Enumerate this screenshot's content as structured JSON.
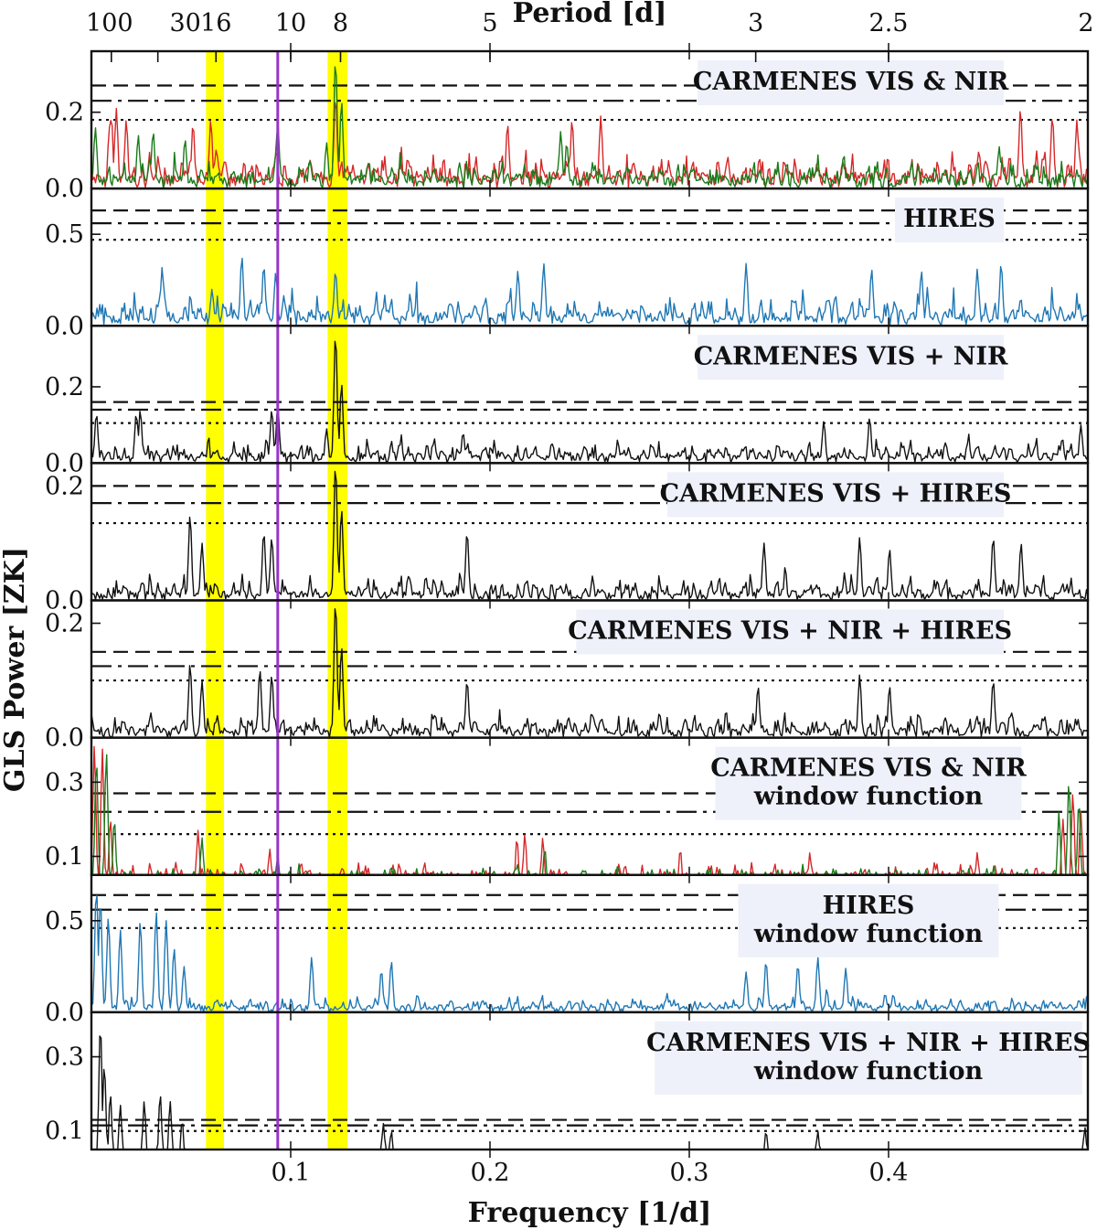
{
  "chart_data": {
    "type": "line",
    "figure_kind": "stacked generalized Lomb-Scargle periodograms",
    "xlabel": "Frequency [1/d]",
    "ylabel": "GLS Power [ZK]",
    "top_axis_label": "Period [d]",
    "xlim": [
      0.0,
      0.5
    ],
    "x_ticks": [
      0.1,
      0.2,
      0.3,
      0.4
    ],
    "x_tick_labels": [
      "0.1",
      "0.2",
      "0.3",
      "0.4"
    ],
    "period_ticks": [
      100,
      30,
      16,
      10,
      8,
      5,
      3,
      2.5,
      2
    ],
    "period_tick_labels": [
      "100",
      "30",
      "16",
      "10",
      "8",
      "5",
      "3",
      "2.5",
      "2"
    ],
    "highlight_bands": [
      {
        "period": 16,
        "frequency_range": [
          0.0575,
          0.0665
        ],
        "color": "#ffff00"
      },
      {
        "period": 8,
        "frequency_range": [
          0.1185,
          0.1285
        ],
        "color": "#ffff00"
      }
    ],
    "marker_line": {
      "frequency": 0.0935,
      "color": "#9933cc"
    },
    "colors": {
      "vis": "#d62728",
      "nir": "#1a7a1a",
      "hires": "#1f77b4",
      "combined": "#111111",
      "label_bg": "#eef0fa"
    },
    "panels": [
      {
        "label_lines": [
          "CARMENES VIS & NIR"
        ],
        "ylim": [
          0.0,
          0.36
        ],
        "y_ticks": [
          0.0,
          0.2
        ],
        "y_tick_labels": [
          "0.0",
          "0.2"
        ],
        "fap_levels": [
          0.27,
          0.23,
          0.18
        ],
        "series": [
          {
            "name": "VIS",
            "color": "#d62728",
            "background": 0.035,
            "noise": 0.11,
            "seed": 11,
            "peaks": [
              [
                0.009,
                0.16
              ],
              [
                0.01,
                0.19
              ],
              [
                0.0125,
                0.21
              ],
              [
                0.0175,
                0.18
              ],
              [
                0.051,
                0.17
              ],
              [
                0.0599,
                0.18
              ],
              [
                0.1225,
                0.24
              ],
              [
                0.2088,
                0.17
              ],
              [
                0.2412,
                0.18
              ],
              [
                0.2556,
                0.19
              ],
              [
                0.4662,
                0.21
              ],
              [
                0.4822,
                0.19
              ],
              [
                0.4945,
                0.18
              ]
            ]
          },
          {
            "name": "NIR",
            "color": "#1a7a1a",
            "background": 0.03,
            "noise": 0.08,
            "seed": 23,
            "peaks": [
              [
                0.002,
                0.16
              ],
              [
                0.0235,
                0.14
              ],
              [
                0.031,
                0.15
              ],
              [
                0.047,
                0.13
              ],
              [
                0.0935,
                0.17
              ],
              [
                0.1225,
                0.34
              ],
              [
                0.1255,
                0.23
              ],
              [
                0.118,
                0.12
              ],
              [
                0.2355,
                0.15
              ],
              [
                0.2385,
                0.12
              ],
              [
                0.4555,
                0.11
              ]
            ]
          }
        ]
      },
      {
        "label_lines": [
          "HIRES"
        ],
        "ylim": [
          0.0,
          0.75
        ],
        "y_ticks": [
          0.0,
          0.5
        ],
        "y_tick_labels": [
          "0.0",
          "0.5"
        ],
        "fap_levels": [
          0.63,
          0.56,
          0.47
        ],
        "series": [
          {
            "name": "HIRES",
            "color": "#1f77b4",
            "background": 0.05,
            "noise": 0.22,
            "seed": 37,
            "peaks": [
              [
                0.0355,
                0.32
              ],
              [
                0.0755,
                0.38
              ],
              [
                0.0865,
                0.33
              ],
              [
                0.0925,
                0.29
              ],
              [
                0.0605,
                0.2
              ],
              [
                0.1225,
                0.3
              ],
              [
                0.214,
                0.3
              ],
              [
                0.227,
                0.34
              ],
              [
                0.3285,
                0.34
              ],
              [
                0.3915,
                0.31
              ],
              [
                0.4445,
                0.31
              ],
              [
                0.4565,
                0.34
              ],
              [
                0.4165,
                0.3
              ]
            ]
          }
        ]
      },
      {
        "label_lines": [
          "CARMENES VIS + NIR"
        ],
        "ylim": [
          0.0,
          0.36
        ],
        "y_ticks": [
          0.0,
          0.2
        ],
        "y_tick_labels": [
          "0.0",
          "0.2"
        ],
        "fap_levels": [
          0.16,
          0.14,
          0.105
        ],
        "series": [
          {
            "name": "VIS + NIR",
            "color": "#111111",
            "background": 0.02,
            "noise": 0.07,
            "seed": 51,
            "peaks": [
              [
                0.0025,
                0.13
              ],
              [
                0.0225,
                0.13
              ],
              [
                0.0245,
                0.14
              ],
              [
                0.0905,
                0.14
              ],
              [
                0.0935,
                0.15
              ],
              [
                0.1225,
                0.34
              ],
              [
                0.1255,
                0.21
              ],
              [
                0.118,
                0.09
              ],
              [
                0.1865,
                0.08
              ],
              [
                0.3675,
                0.11
              ],
              [
                0.3905,
                0.12
              ],
              [
                0.4965,
                0.1
              ]
            ]
          }
        ]
      },
      {
        "label_lines": [
          "CARMENES VIS + HIRES"
        ],
        "ylim": [
          0.0,
          0.24
        ],
        "y_ticks": [
          0.0,
          0.2
        ],
        "y_tick_labels": [
          "0.0",
          "0.2"
        ],
        "fap_levels": [
          0.2,
          0.17,
          0.135
        ],
        "series": [
          {
            "name": "VIS + HIRES",
            "color": "#111111",
            "background": 0.012,
            "noise": 0.055,
            "seed": 67,
            "peaks": [
              [
                0.0495,
                0.15
              ],
              [
                0.0555,
                0.1
              ],
              [
                0.0865,
                0.12
              ],
              [
                0.0905,
                0.11
              ],
              [
                0.1225,
                0.24
              ],
              [
                0.1255,
                0.16
              ],
              [
                0.1885,
                0.12
              ],
              [
                0.3375,
                0.1
              ],
              [
                0.3855,
                0.11
              ],
              [
                0.4005,
                0.09
              ],
              [
                0.4525,
                0.11
              ],
              [
                0.4665,
                0.1
              ]
            ]
          }
        ]
      },
      {
        "label_lines": [
          "CARMENES VIS + NIR + HIRES"
        ],
        "ylim": [
          0.0,
          0.24
        ],
        "y_ticks": [
          0.0,
          0.2
        ],
        "y_tick_labels": [
          "0.0",
          "0.2"
        ],
        "fap_levels": [
          0.15,
          0.125,
          0.1
        ],
        "series": [
          {
            "name": "VIS + NIR + HIRES",
            "color": "#111111",
            "background": 0.012,
            "noise": 0.055,
            "seed": 83,
            "peaks": [
              [
                0.0495,
                0.13
              ],
              [
                0.0555,
                0.1
              ],
              [
                0.0845,
                0.12
              ],
              [
                0.0905,
                0.11
              ],
              [
                0.1225,
                0.24
              ],
              [
                0.1255,
                0.16
              ],
              [
                0.1885,
                0.1
              ],
              [
                0.3855,
                0.11
              ],
              [
                0.4005,
                0.09
              ],
              [
                0.4525,
                0.1
              ],
              [
                0.3345,
                0.09
              ]
            ]
          }
        ]
      },
      {
        "label_lines": [
          "CARMENES VIS & NIR",
          "window function"
        ],
        "ylim": [
          0.05,
          0.42
        ],
        "y_ticks": [
          0.1,
          0.3
        ],
        "y_tick_labels": [
          "0.1",
          "0.3"
        ],
        "fap_levels": [
          0.27,
          0.22,
          0.16
        ],
        "series": [
          {
            "name": "VIS window",
            "color": "#d62728",
            "background": 0.06,
            "noise": 0.045,
            "seed": 101,
            "peaks": [
              [
                0.0015,
                0.4
              ],
              [
                0.0055,
                0.39
              ],
              [
                0.0095,
                0.2
              ],
              [
                0.0535,
                0.17
              ],
              [
                0.0895,
                0.12
              ],
              [
                0.2135,
                0.15
              ],
              [
                0.2175,
                0.16
              ],
              [
                0.2265,
                0.15
              ],
              [
                0.2955,
                0.12
              ],
              [
                0.3605,
                0.11
              ],
              [
                0.4445,
                0.11
              ],
              [
                0.4875,
                0.2
              ],
              [
                0.4925,
                0.27
              ],
              [
                0.4965,
                0.22
              ]
            ]
          },
          {
            "name": "NIR window",
            "color": "#1a7a1a",
            "background": 0.055,
            "noise": 0.04,
            "seed": 113,
            "peaks": [
              [
                0.0025,
                0.36
              ],
              [
                0.0075,
                0.38
              ],
              [
                0.0115,
                0.2
              ],
              [
                0.0555,
                0.15
              ],
              [
                0.0935,
                0.1
              ],
              [
                0.2275,
                0.12
              ],
              [
                0.4855,
                0.22
              ],
              [
                0.4905,
                0.3
              ],
              [
                0.4955,
                0.25
              ]
            ]
          }
        ]
      },
      {
        "label_lines": [
          "HIRES",
          "window function"
        ],
        "ylim": [
          0.0,
          0.75
        ],
        "y_ticks": [
          0.0,
          0.5
        ],
        "y_tick_labels": [
          "0.0",
          "0.5"
        ],
        "fap_levels": [
          0.64,
          0.56,
          0.46
        ],
        "series": [
          {
            "name": "HIRES window",
            "color": "#1f77b4",
            "background": 0.03,
            "noise": 0.1,
            "seed": 131,
            "peaks": [
              [
                0.0025,
                0.68
              ],
              [
                0.0045,
                0.62
              ],
              [
                0.0085,
                0.52
              ],
              [
                0.0145,
                0.45
              ],
              [
                0.0245,
                0.5
              ],
              [
                0.0325,
                0.55
              ],
              [
                0.0375,
                0.5
              ],
              [
                0.0415,
                0.35
              ],
              [
                0.0465,
                0.25
              ],
              [
                0.1105,
                0.3
              ],
              [
                0.1505,
                0.28
              ],
              [
                0.1455,
                0.23
              ],
              [
                0.3385,
                0.28
              ],
              [
                0.3545,
                0.26
              ],
              [
                0.3645,
                0.3
              ],
              [
                0.3785,
                0.24
              ],
              [
                0.3285,
                0.22
              ]
            ]
          }
        ]
      },
      {
        "label_lines": [
          "CARMENES VIS + NIR + HIRES",
          "window function"
        ],
        "ylim": [
          0.05,
          0.42
        ],
        "y_ticks": [
          0.1,
          0.3
        ],
        "y_tick_labels": [
          "0.1",
          "0.3"
        ],
        "fap_levels": [
          0.13,
          0.115,
          0.1
        ],
        "series": [
          {
            "name": "combined window",
            "color": "#111111",
            "background": 0.03,
            "noise": 0.035,
            "seed": 149,
            "peaks": [
              [
                0.0045,
                0.39
              ],
              [
                0.0065,
                0.28
              ],
              [
                0.0095,
                0.2
              ],
              [
                0.0145,
                0.17
              ],
              [
                0.0265,
                0.18
              ],
              [
                0.0345,
                0.2
              ],
              [
                0.0395,
                0.18
              ],
              [
                0.0455,
                0.13
              ],
              [
                0.1465,
                0.12
              ],
              [
                0.1505,
                0.1
              ],
              [
                0.3385,
                0.1
              ],
              [
                0.3645,
                0.1
              ],
              [
                0.4985,
                0.11
              ]
            ]
          }
        ]
      }
    ]
  }
}
